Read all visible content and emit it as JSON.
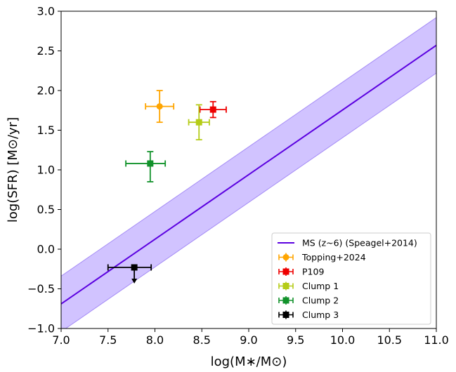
{
  "chart_data": {
    "type": "scatter",
    "xlabel": "log(M∗/M⊙)",
    "ylabel": "log(SFR) [M⊙/yr]",
    "xlim": [
      7.0,
      11.0
    ],
    "ylim": [
      -1.0,
      3.0
    ],
    "xticks": [
      "7.0",
      "7.5",
      "8.0",
      "8.5",
      "9.0",
      "9.5",
      "10.0",
      "10.5",
      "11.0"
    ],
    "yticks": [
      "−1.0",
      "−0.5",
      "0.0",
      "0.5",
      "1.0",
      "1.5",
      "2.0",
      "2.5",
      "3.0"
    ],
    "grid": false,
    "legend_position": "bottom-right",
    "main_sequence": {
      "name": "MS (z~6) (Speagel+2014)",
      "color": "#5b00e0",
      "band_color": "#c9b8ff",
      "x": [
        7.0,
        11.0
      ],
      "y": [
        -0.69,
        2.57
      ],
      "band_halfwidth": 0.35
    },
    "series": [
      {
        "name": "Topping+2024",
        "color": "#ffa500",
        "marker": "circle",
        "x": 8.05,
        "y": 1.8,
        "xerr": [
          0.15,
          0.15
        ],
        "yerr": [
          0.2,
          0.2
        ],
        "upper_limit": false
      },
      {
        "name": "P109",
        "color": "#ee0000",
        "marker": "square",
        "x": 8.62,
        "y": 1.76,
        "xerr": [
          0.14,
          0.14
        ],
        "yerr": [
          0.1,
          0.1
        ],
        "upper_limit": false
      },
      {
        "name": "Clump 1",
        "color": "#b5cc18",
        "marker": "square",
        "x": 8.47,
        "y": 1.6,
        "xerr": [
          0.11,
          0.11
        ],
        "yerr": [
          0.22,
          0.22
        ],
        "upper_limit": false
      },
      {
        "name": "Clump 2",
        "color": "#12922b",
        "marker": "square",
        "x": 7.95,
        "y": 1.08,
        "xerr": [
          0.26,
          0.16
        ],
        "yerr": [
          0.23,
          0.15
        ],
        "upper_limit": false
      },
      {
        "name": "Clump 3",
        "color": "#000000",
        "marker": "square",
        "x": 7.78,
        "y": -0.23,
        "xerr": [
          0.28,
          0.18
        ],
        "yerr": [
          0.0,
          0.0
        ],
        "upper_limit": true
      }
    ]
  }
}
